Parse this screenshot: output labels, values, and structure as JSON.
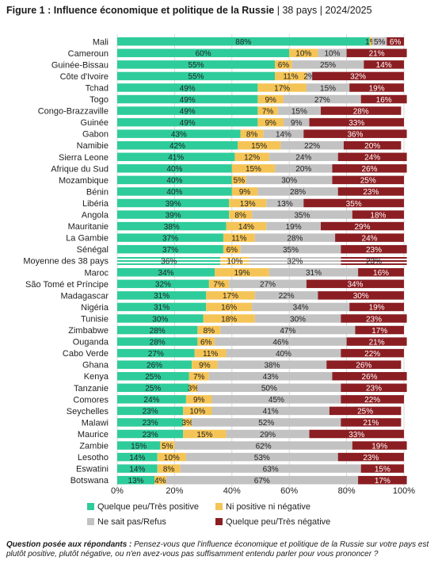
{
  "title": {
    "main": "Figure 1 : Influence économique et politique de la Russie",
    "sep": "|",
    "countries": "38 pays",
    "period": "2024/2025"
  },
  "question": {
    "label": "Question posée aux répondants :",
    "text": "Pensez-vous que l'influence économique et politique de la Russie sur votre pays est plutôt positive, plutôt négative, ou n'en avez-vous pas suffisamment entendu parler pour vous prononcer ?"
  },
  "colors": {
    "positive": "#2ecc9a",
    "neutral": "#f5c456",
    "dontknow": "#c2c2c2",
    "negative": "#8b1e22"
  },
  "chart_data": {
    "type": "bar",
    "orientation": "horizontal",
    "stacked": true,
    "xlim": [
      0,
      100
    ],
    "xticks": [
      "0%",
      "20%",
      "40%",
      "60%",
      "80%",
      "100%"
    ],
    "grid": true,
    "legend_position": "bottom",
    "highlight_category": "Moyenne des 38 pays",
    "categories": [
      "Mali",
      "Cameroun",
      "Guinée-Bissau",
      "Côte d'Ivoire",
      "Tchad",
      "Togo",
      "Congo-Brazzaville",
      "Guinée",
      "Gabon",
      "Namibie",
      "Sierra Leone",
      "Afrique du Sud",
      "Mozambique",
      "Bénin",
      "Libéria",
      "Angola",
      "Mauritanie",
      "La Gambie",
      "Sénégal",
      "Moyenne des 38 pays",
      "Maroc",
      "São Tomé et Príncipe",
      "Madagascar",
      "Nigéria",
      "Tunisie",
      "Zimbabwe",
      "Ouganda",
      "Cabo Verde",
      "Ghana",
      "Kenya",
      "Tanzanie",
      "Comores",
      "Seychelles",
      "Malawi",
      "Maurice",
      "Zambie",
      "Lesotho",
      "Eswatini",
      "Botswana"
    ],
    "series": [
      {
        "name": "Quelque peu/Très positive",
        "key": "positive",
        "values": [
          88,
          60,
          55,
          55,
          49,
          49,
          49,
          49,
          43,
          42,
          41,
          40,
          40,
          40,
          39,
          39,
          38,
          37,
          37,
          36,
          34,
          32,
          31,
          31,
          30,
          28,
          28,
          27,
          26,
          25,
          25,
          24,
          23,
          23,
          23,
          15,
          14,
          14,
          13
        ]
      },
      {
        "name": "Ni positive ni négative",
        "key": "neutral",
        "values": [
          1,
          10,
          6,
          11,
          17,
          9,
          7,
          9,
          8,
          15,
          12,
          15,
          5,
          9,
          13,
          8,
          14,
          11,
          6,
          10,
          19,
          7,
          17,
          16,
          18,
          8,
          6,
          11,
          9,
          7,
          3,
          9,
          10,
          3,
          15,
          5,
          10,
          8,
          4
        ]
      },
      {
        "name": "Ne sait pas/Refus",
        "key": "dontknow",
        "values": [
          5,
          10,
          25,
          2,
          15,
          27,
          15,
          9,
          14,
          22,
          24,
          20,
          30,
          28,
          13,
          35,
          19,
          28,
          35,
          32,
          31,
          27,
          22,
          34,
          30,
          47,
          46,
          40,
          38,
          43,
          50,
          45,
          41,
          52,
          29,
          62,
          53,
          63,
          67
        ]
      },
      {
        "name": "Quelque peu/Très négative",
        "key": "negative",
        "values": [
          6,
          21,
          14,
          32,
          19,
          16,
          28,
          33,
          36,
          20,
          24,
          26,
          25,
          23,
          35,
          18,
          29,
          24,
          23,
          23,
          16,
          34,
          30,
          19,
          23,
          17,
          21,
          22,
          26,
          26,
          23,
          22,
          25,
          21,
          33,
          19,
          23,
          15,
          17
        ]
      }
    ]
  }
}
